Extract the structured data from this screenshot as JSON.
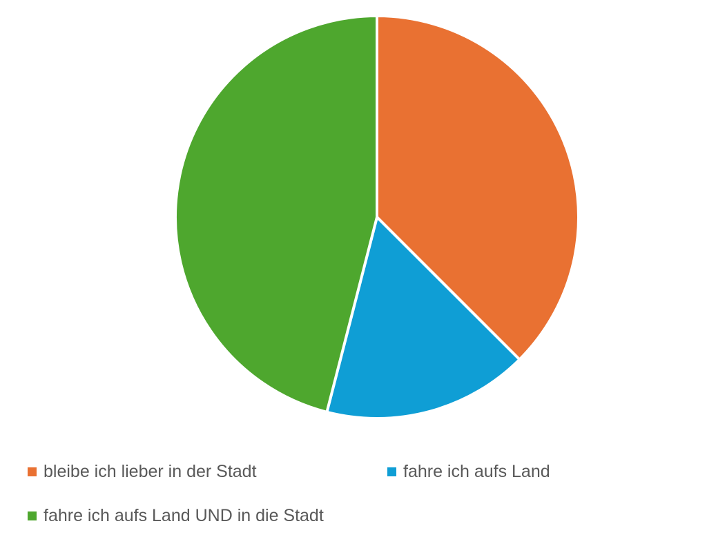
{
  "chart_data": {
    "type": "pie",
    "title": "",
    "start_angle_deg": 0,
    "direction": "clockwise",
    "legend_position": "bottom",
    "slices": [
      {
        "label": "bleibe ich lieber in der Stadt",
        "value": 37.5,
        "color": "#E97132"
      },
      {
        "label": "fahre ich aufs Land",
        "value": 16.5,
        "color": "#0F9ED5"
      },
      {
        "label": "fahre ich aufs Land UND in die Stadt",
        "value": 46.0,
        "color": "#4EA72E"
      }
    ],
    "slice_border_color": "#FFFFFF"
  }
}
